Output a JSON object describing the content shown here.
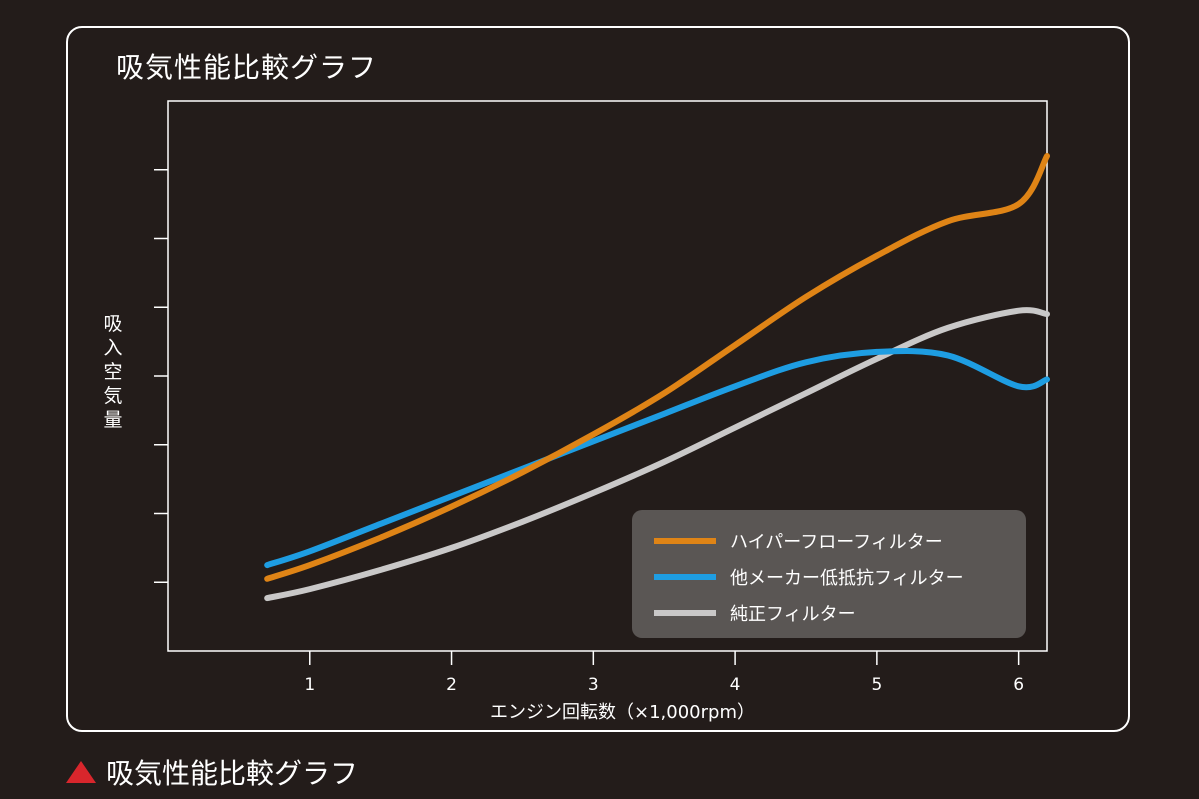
{
  "panel_title": "吸気性能比較グラフ",
  "caption": "吸気性能比較グラフ",
  "colors": {
    "background": "#231c1a",
    "frame": "#ffffff",
    "legend_bg": "#5a5654",
    "caption_triangle": "#d8262c"
  },
  "chart_data": {
    "type": "line",
    "title": "吸気性能比較グラフ",
    "xlabel": "エンジン回転数（×1,000rpm）",
    "ylabel": "吸入空気量",
    "xlim": [
      0.0,
      6.2
    ],
    "ylim": [
      0,
      8
    ],
    "x_ticks": [
      1,
      2,
      3,
      4,
      5,
      6
    ],
    "y_ticks": [
      1,
      2,
      3,
      4,
      5,
      6,
      7
    ],
    "y_tick_labels_shown": false,
    "grid": false,
    "legend_position": "bottom-right",
    "series": [
      {
        "name": "ハイパーフローフィルター",
        "color": "#df8416",
        "x": [
          0.7,
          1.0,
          1.5,
          2.0,
          2.5,
          3.0,
          3.5,
          4.0,
          4.5,
          5.0,
          5.5,
          6.0,
          6.2
        ],
        "y": [
          1.05,
          1.25,
          1.65,
          2.1,
          2.6,
          3.15,
          3.75,
          4.45,
          5.15,
          5.75,
          6.25,
          6.5,
          7.2
        ]
      },
      {
        "name": "他メーカー低抵抗フィルター",
        "color": "#1e9de2",
        "x": [
          0.7,
          1.0,
          1.5,
          2.0,
          2.5,
          3.0,
          3.5,
          4.0,
          4.5,
          5.0,
          5.5,
          6.0,
          6.2
        ],
        "y": [
          1.25,
          1.45,
          1.85,
          2.25,
          2.65,
          3.05,
          3.45,
          3.85,
          4.2,
          4.35,
          4.3,
          3.85,
          3.95
        ]
      },
      {
        "name": "純正フィルター",
        "color": "#c9c8c8",
        "x": [
          0.7,
          1.0,
          1.5,
          2.0,
          2.5,
          3.0,
          3.5,
          4.0,
          4.5,
          5.0,
          5.5,
          6.0,
          6.2
        ],
        "y": [
          0.77,
          0.9,
          1.18,
          1.5,
          1.88,
          2.3,
          2.75,
          3.25,
          3.75,
          4.25,
          4.7,
          4.95,
          4.9
        ]
      }
    ]
  }
}
